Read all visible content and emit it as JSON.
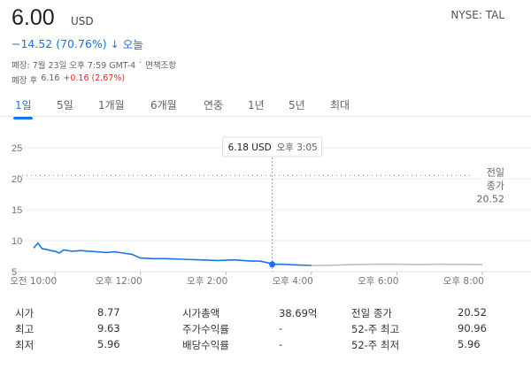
{
  "header": {
    "price": "6.00",
    "currency": "USD",
    "ticker": "NYSE: TAL",
    "change": "−14.52 (70.76%)",
    "change_arrow": "↓",
    "change_period": "오늘",
    "close_info": "폐장: 7월 23일 오후 7:59 GMT-4",
    "disclaimer_sep": "·",
    "disclaimer": "면책조항",
    "after_hours_label": "폐장 후",
    "after_hours_price": "6.16",
    "after_hours_change": "+0.16 (2.67%)"
  },
  "tabs": [
    {
      "label": "1일",
      "active": true
    },
    {
      "label": "5일",
      "active": false
    },
    {
      "label": "1개월",
      "active": false
    },
    {
      "label": "6개월",
      "active": false
    },
    {
      "label": "연중",
      "active": false
    },
    {
      "label": "1년",
      "active": false
    },
    {
      "label": "5년",
      "active": false
    },
    {
      "label": "최대",
      "active": false
    }
  ],
  "tooltip": {
    "price": "6.18 USD",
    "time": "오후 3:05"
  },
  "prev_close": {
    "label_line1": "전일",
    "label_line2": "종가",
    "value": "20.52"
  },
  "colors": {
    "accent": "#1a73e8",
    "line": "#1a73e8",
    "afterhours_line": "#bdbdbd",
    "up": "#d93025"
  },
  "chart_data": {
    "type": "line",
    "yticks": [
      5,
      10,
      15,
      20,
      25
    ],
    "ylim": [
      5,
      25
    ],
    "xtick_labels": [
      "오전 10:00",
      "오후 12:00",
      "오후 2:00",
      "오후 4:00",
      "오후 6:00",
      "오후 8:00"
    ],
    "xtick_hours": [
      10,
      12,
      14,
      16,
      18,
      20
    ],
    "xlim_hours": [
      9.5,
      20.0
    ],
    "prev_close": 20.52,
    "series": [
      {
        "segment": "regular",
        "x_hours": [
          9.5,
          9.6,
          9.7,
          9.8,
          9.9,
          10.0,
          10.1,
          10.2,
          10.4,
          10.6,
          10.8,
          11.0,
          11.2,
          11.4,
          11.6,
          11.8,
          12.0,
          12.3,
          12.6,
          13.0,
          13.4,
          13.8,
          14.2,
          14.6,
          14.8,
          15.0,
          15.083,
          15.3,
          15.6,
          16.0
        ],
        "values": [
          8.8,
          9.6,
          8.7,
          8.6,
          8.4,
          8.3,
          8.0,
          8.5,
          8.3,
          8.4,
          8.3,
          8.2,
          8.1,
          8.2,
          8.0,
          7.8,
          7.2,
          7.1,
          7.1,
          7.0,
          6.9,
          6.8,
          6.9,
          6.7,
          6.7,
          6.4,
          6.18,
          6.2,
          6.1,
          6.0
        ]
      },
      {
        "segment": "after_hours",
        "x_hours": [
          16.0,
          16.5,
          17.0,
          17.5,
          18.0,
          18.5,
          19.0,
          19.5,
          20.0
        ],
        "values": [
          6.0,
          6.05,
          6.15,
          6.2,
          6.2,
          6.15,
          6.2,
          6.18,
          6.16
        ]
      }
    ],
    "marker": {
      "x_hour": 15.083,
      "value": 6.18
    }
  },
  "stats": {
    "col1": [
      {
        "label": "시가",
        "value": "8.77"
      },
      {
        "label": "최고",
        "value": "9.63"
      },
      {
        "label": "최저",
        "value": "5.96"
      }
    ],
    "col2": [
      {
        "label": "시가총액",
        "value": "38.69억"
      },
      {
        "label": "주가수익률",
        "value": "-"
      },
      {
        "label": "배당수익률",
        "value": "-"
      }
    ],
    "col3": [
      {
        "label": "전일 종가",
        "value": "20.52"
      },
      {
        "label": "52-주 최고",
        "value": "90.96"
      },
      {
        "label": "52-주 최저",
        "value": "5.96"
      }
    ]
  }
}
